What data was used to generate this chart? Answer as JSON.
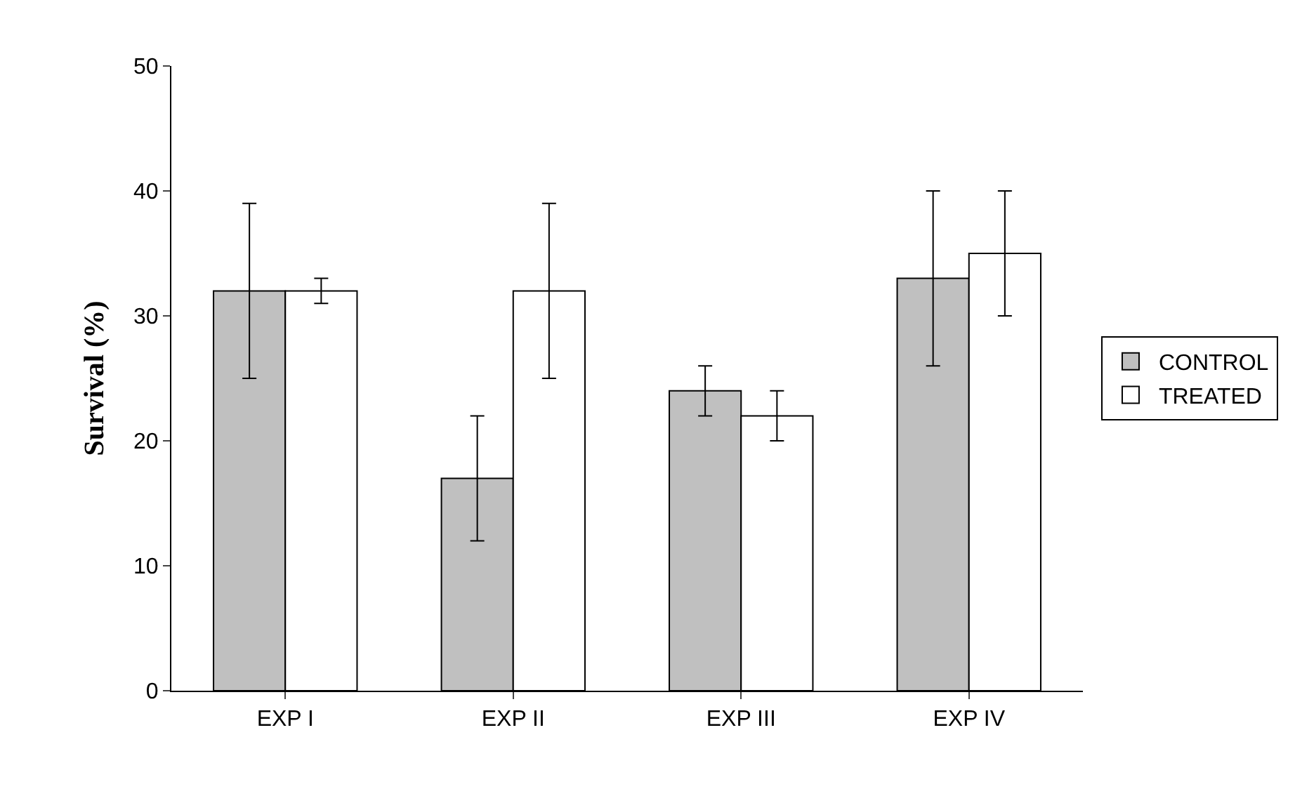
{
  "chart_data": {
    "type": "bar",
    "ylabel": "Survival (%)",
    "categories": [
      "EXP I",
      "EXP II",
      "EXP III",
      "EXP IV"
    ],
    "series": [
      {
        "name": "CONTROL",
        "color": "#c0c0c0",
        "values": [
          32,
          17,
          24,
          33
        ],
        "errors": [
          7,
          5,
          2,
          7
        ]
      },
      {
        "name": "TREATED",
        "color": "#ffffff",
        "values": [
          32,
          32,
          22,
          35
        ],
        "errors": [
          1,
          7,
          2,
          5
        ]
      }
    ],
    "ylim": [
      0,
      50
    ],
    "yticks": [
      0,
      10,
      20,
      30,
      40,
      50
    ],
    "legend": "right"
  }
}
